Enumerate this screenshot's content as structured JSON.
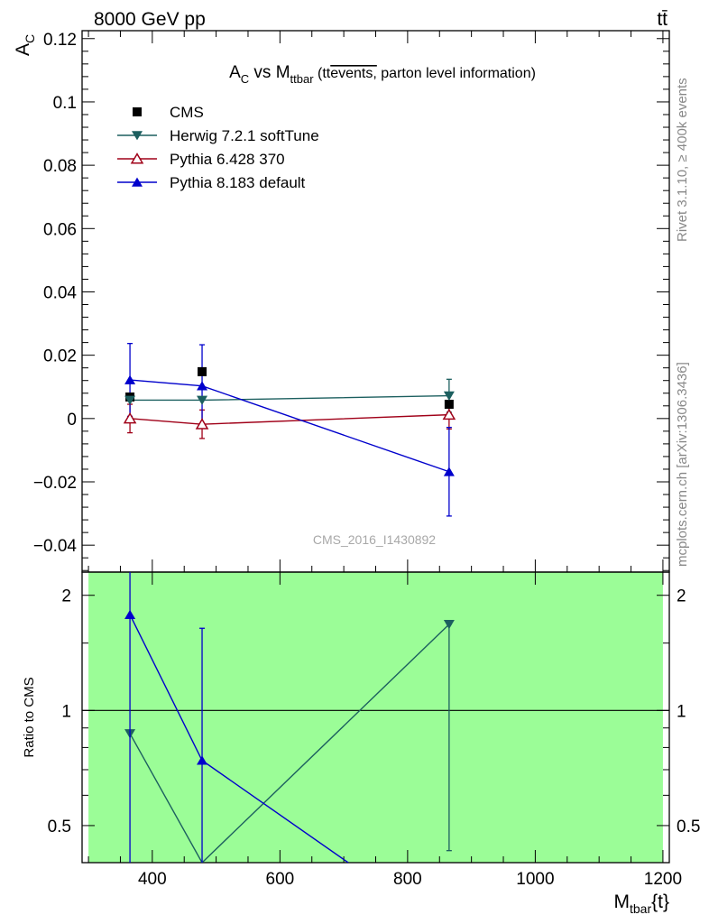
{
  "header": {
    "energy_label": "8000 GeV pp",
    "process_label": "tt̄"
  },
  "side_labels": {
    "rivet": "Rivet 3.1.10, ≥ 400k events",
    "source": "mcplots.cern.ch [arXiv:1306.3436]"
  },
  "chart_data": [
    {
      "type": "line",
      "title_parts": {
        "main": "A",
        "main_sub": "C",
        "vs": " vs M",
        "vs_sub": "ttbar",
        "paren_open": " (tt",
        "paren_over": "events,",
        "paren_rest": " parton level information)"
      },
      "ylabel": "A",
      "ylabel_sub": "C",
      "xlim": [
        290,
        1210
      ],
      "ylim": [
        -0.0485,
        0.1225
      ],
      "yticks": [
        -0.04,
        -0.02,
        0,
        0.02,
        0.04,
        0.06,
        0.08,
        0.1,
        0.12
      ],
      "ytick_labels": [
        "−0.04",
        "−0.02",
        "0",
        "0.02",
        "0.04",
        "0.06",
        "0.08",
        "0.1",
        "0.12"
      ],
      "watermark": "CMS_2016_I1430892",
      "legend_position": "top-left",
      "series": [
        {
          "name": "CMS",
          "color": "#000000",
          "marker": "square",
          "x": [
            365,
            478,
            865
          ],
          "y": [
            0.0068,
            0.0148,
            0.0045
          ],
          "err": [
            0.0,
            0.0,
            0.0
          ]
        },
        {
          "name": "Herwig 7.2.1 softTune",
          "color": "#1c5f5f",
          "marker": "triangle-down",
          "x": [
            365,
            478,
            865
          ],
          "y": [
            0.0058,
            0.0058,
            0.0072
          ],
          "err": [
            0.0,
            0.0,
            0.0052
          ]
        },
        {
          "name": "Pythia 6.428 370",
          "color": "#a00018",
          "marker": "triangle-up-open",
          "x": [
            365,
            478,
            865
          ],
          "y": [
            0.0,
            -0.0018,
            0.0012
          ],
          "err": [
            0.0045,
            0.0045,
            0.0045
          ]
        },
        {
          "name": "Pythia 8.183 default",
          "color": "#0000cc",
          "marker": "triangle-up",
          "x": [
            365,
            478,
            865
          ],
          "y": [
            0.0122,
            0.0103,
            -0.0168
          ],
          "err": [
            0.0115,
            0.013,
            0.014
          ]
        }
      ]
    },
    {
      "type": "line",
      "ylabel": "Ratio to CMS",
      "xlabel": "M",
      "xlabel_sub": "tbar",
      "xlabel_rest": "{t}",
      "xlim": [
        290,
        1210
      ],
      "ylim": [
        0.4,
        2.3
      ],
      "yscale": "log",
      "yticks": [
        0.5,
        1,
        2
      ],
      "ytick_labels": [
        "0.5",
        "1",
        "2"
      ],
      "xticks": [
        400,
        600,
        800,
        1000,
        1200
      ],
      "xtick_labels": [
        "400",
        "600",
        "800",
        "1000",
        "1200"
      ],
      "band": {
        "x_range": [
          300,
          1200
        ],
        "y_range": [
          0.4,
          2.3
        ],
        "color": "#9bfd97"
      },
      "reference_line": 1,
      "series": [
        {
          "name": "Herwig 7.2.1 softTune",
          "color": "#1c5f5f",
          "marker": "triangle-down",
          "x": [
            365,
            478,
            865
          ],
          "y": [
            0.87,
            0.4,
            1.68
          ],
          "err_lo": [
            0.0,
            0.0,
            1.25
          ],
          "err_hi": [
            0.0,
            0.0,
            0.0
          ]
        },
        {
          "name": "Pythia 8.183 default",
          "color": "#0000cc",
          "marker": "triangle-up",
          "x": [
            365,
            478,
            707
          ],
          "y": [
            1.78,
            0.74,
            0.4
          ],
          "err_lo": [
            1.4,
            0.36,
            0.0
          ],
          "err_hi": [
            0.6,
            0.9,
            0.0
          ]
        }
      ]
    }
  ]
}
